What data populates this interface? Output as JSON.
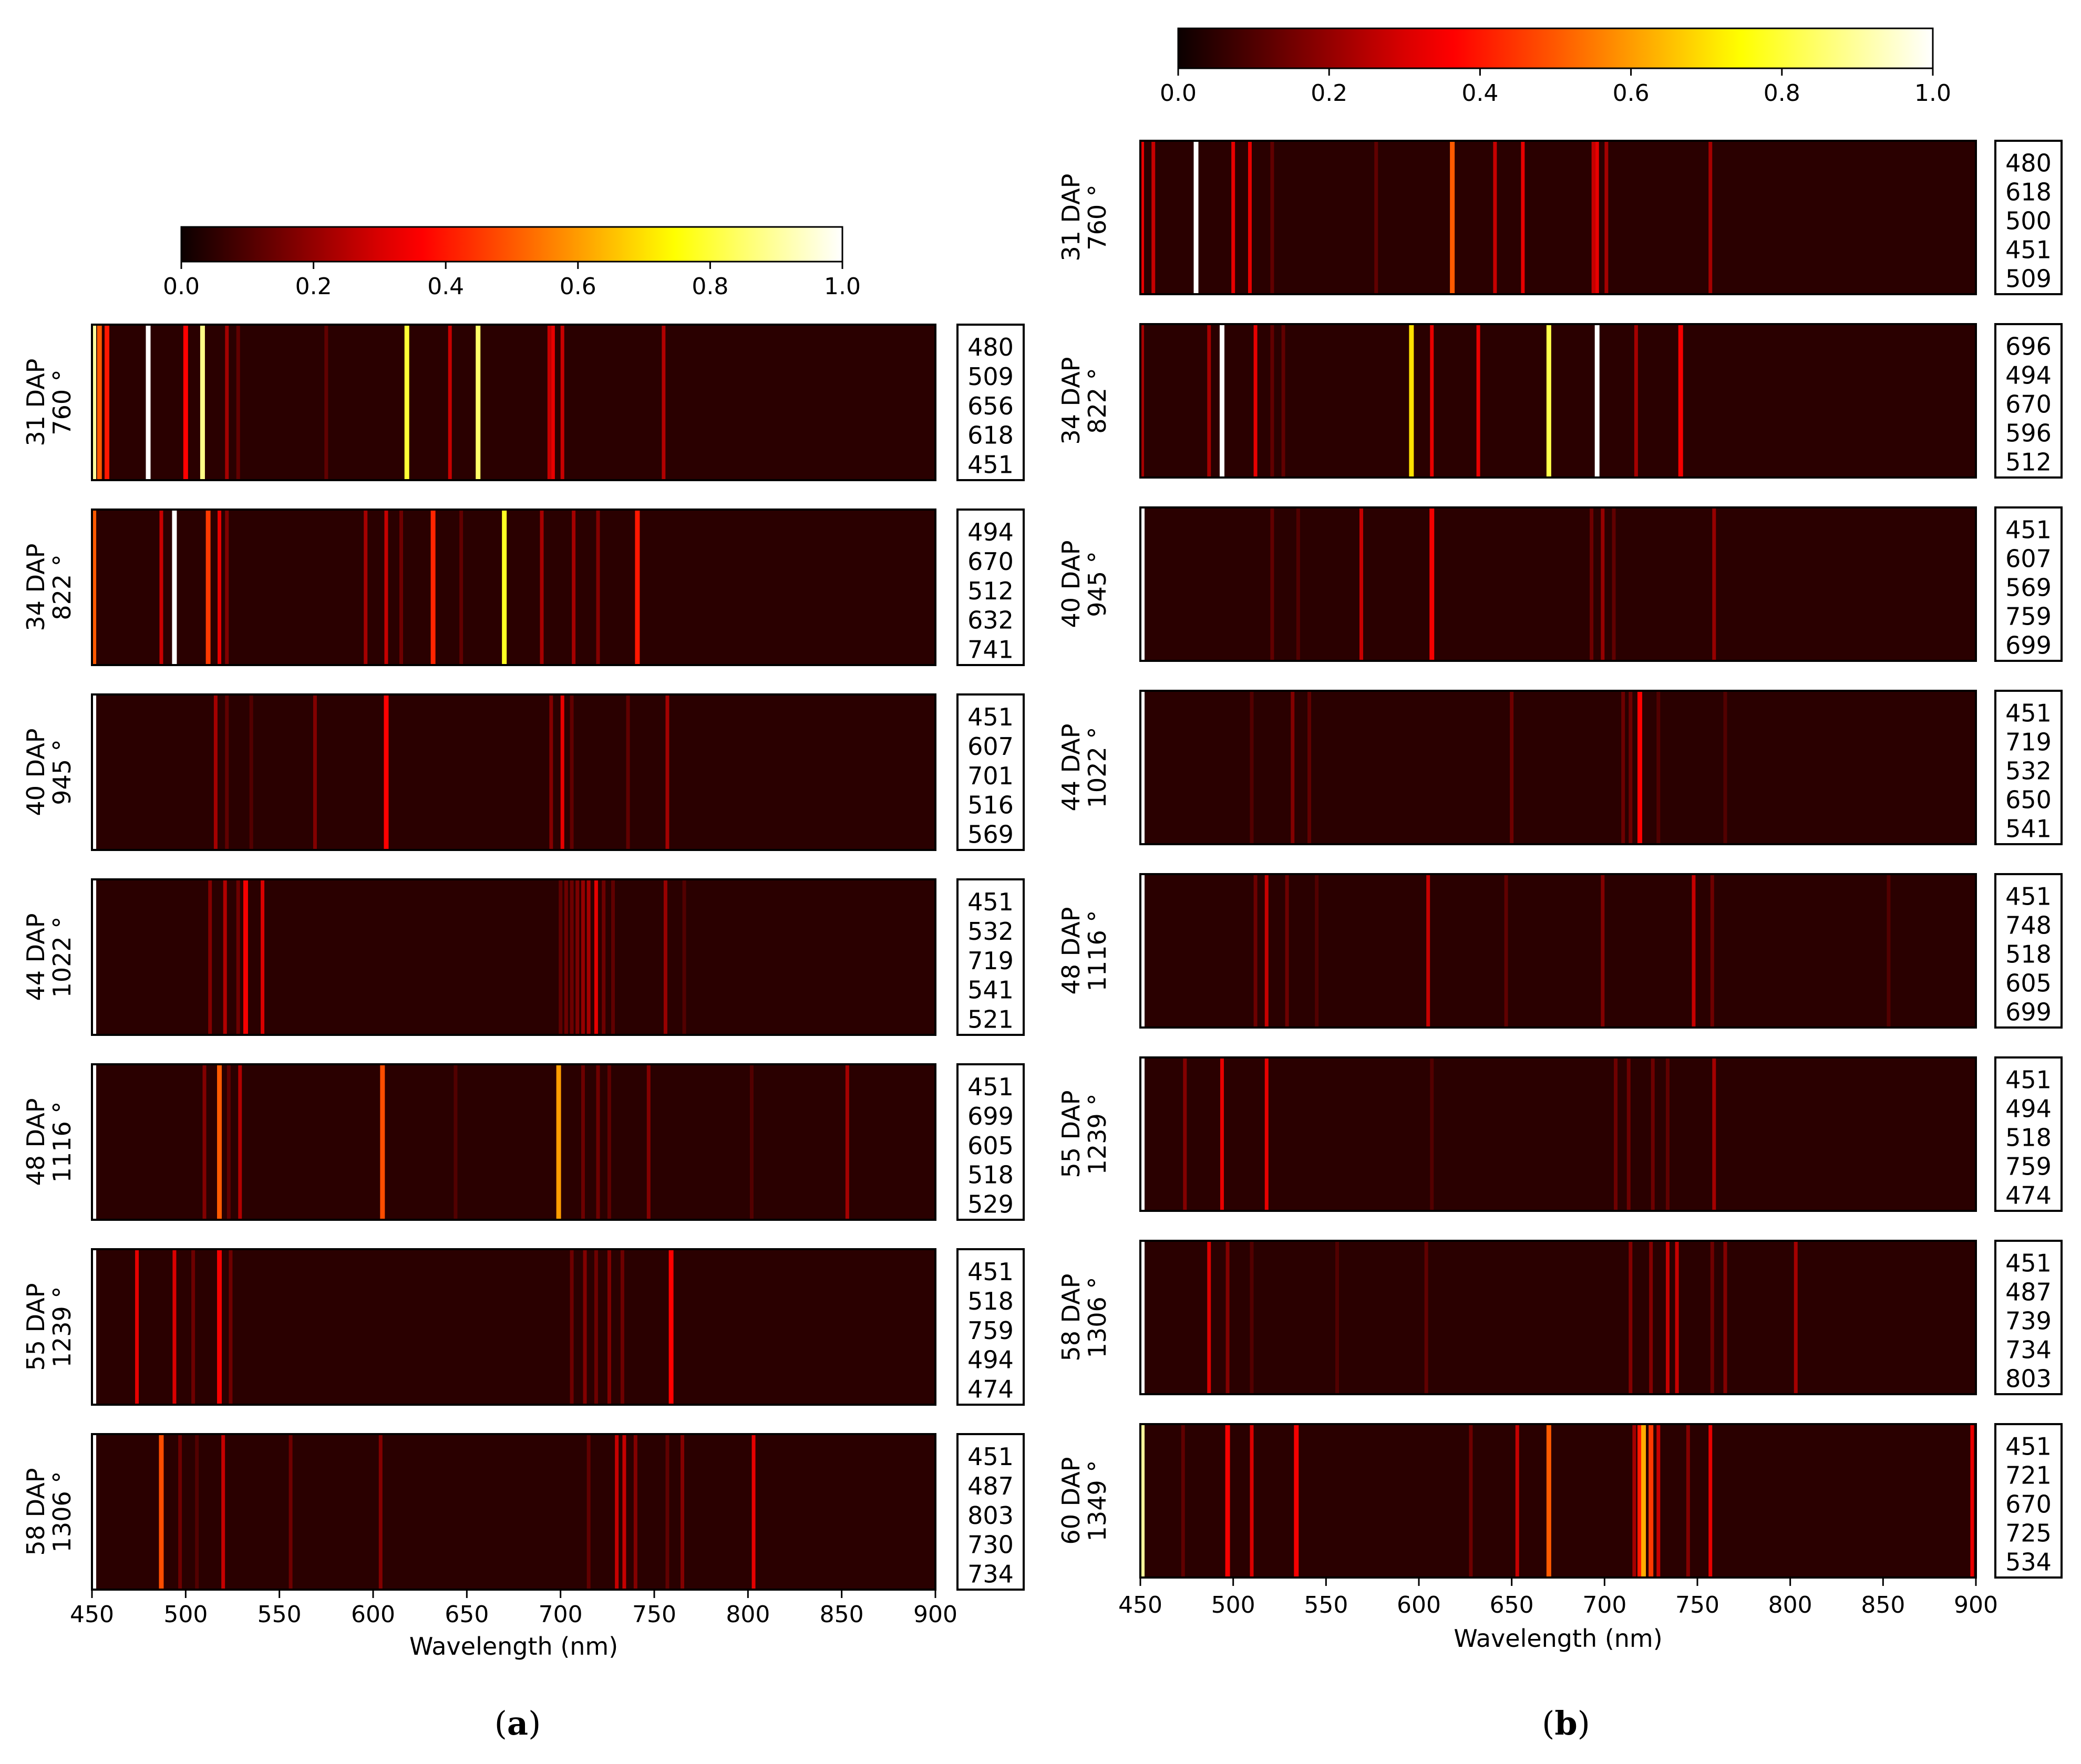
{
  "charts": [
    {
      "id": "a",
      "caption_letter": "a",
      "type": "heatmap",
      "xlabel": "Wavelength (nm)",
      "xlim": [
        450,
        900
      ],
      "xticks": [
        450,
        500,
        550,
        600,
        650,
        700,
        750,
        800,
        850,
        900
      ],
      "colorbar": {
        "colormap": "hot",
        "range": [
          0.0,
          1.0
        ],
        "ticks": [
          "0.0",
          "0.2",
          "0.4",
          "0.6",
          "0.8",
          "1.0"
        ]
      },
      "rows": [
        {
          "dap": "31 DAP",
          "deg": "760 °",
          "codes": [
            "480",
            "509",
            "656",
            "618",
            "451"
          ],
          "lines": [
            [
              451,
              0.9
            ],
            [
              454,
              0.5
            ],
            [
              458,
              0.4
            ],
            [
              480,
              1.0
            ],
            [
              500,
              0.34
            ],
            [
              509,
              0.88
            ],
            [
              522,
              0.2
            ],
            [
              528,
              0.1
            ],
            [
              575,
              0.1
            ],
            [
              618,
              0.8
            ],
            [
              641,
              0.25
            ],
            [
              656,
              0.85
            ],
            [
              694,
              0.25
            ],
            [
              696,
              0.3
            ],
            [
              701,
              0.25
            ],
            [
              755,
              0.22
            ]
          ]
        },
        {
          "dap": "34 DAP",
          "deg": "822 °",
          "codes": [
            "494",
            "670",
            "512",
            "632",
            "741"
          ],
          "lines": [
            [
              451,
              0.5
            ],
            [
              487,
              0.25
            ],
            [
              494,
              1.0
            ],
            [
              512,
              0.45
            ],
            [
              518,
              0.3
            ],
            [
              522,
              0.15
            ],
            [
              596,
              0.2
            ],
            [
              607,
              0.25
            ],
            [
              615,
              0.12
            ],
            [
              632,
              0.42
            ],
            [
              647,
              0.1
            ],
            [
              670,
              0.78
            ],
            [
              690,
              0.2
            ],
            [
              707,
              0.2
            ],
            [
              720,
              0.15
            ],
            [
              741,
              0.4
            ]
          ]
        },
        {
          "dap": "40 DAP",
          "deg": "945 °",
          "codes": [
            "451",
            "607",
            "701",
            "516",
            "569"
          ],
          "lines": [
            [
              451,
              1.0
            ],
            [
              516,
              0.2
            ],
            [
              522,
              0.1
            ],
            [
              535,
              0.08
            ],
            [
              569,
              0.15
            ],
            [
              607,
              0.35
            ],
            [
              695,
              0.15
            ],
            [
              701,
              0.3
            ],
            [
              706,
              0.1
            ],
            [
              736,
              0.1
            ],
            [
              757,
              0.2
            ]
          ]
        },
        {
          "dap": "44 DAP",
          "deg": "1022 °",
          "codes": [
            "451",
            "532",
            "719",
            "541",
            "521"
          ],
          "lines": [
            [
              451,
              1.0
            ],
            [
              513,
              0.15
            ],
            [
              521,
              0.22
            ],
            [
              528,
              0.12
            ],
            [
              532,
              0.32
            ],
            [
              541,
              0.28
            ],
            [
              700,
              0.1
            ],
            [
              703,
              0.12
            ],
            [
              706,
              0.12
            ],
            [
              709,
              0.14
            ],
            [
              712,
              0.18
            ],
            [
              715,
              0.2
            ],
            [
              719,
              0.3
            ],
            [
              723,
              0.12
            ],
            [
              728,
              0.1
            ],
            [
              756,
              0.18
            ],
            [
              766,
              0.08
            ]
          ]
        },
        {
          "dap": "48 DAP",
          "deg": "1116 °",
          "codes": [
            "451",
            "699",
            "605",
            "518",
            "529"
          ],
          "lines": [
            [
              451,
              1.0
            ],
            [
              510,
              0.15
            ],
            [
              518,
              0.5
            ],
            [
              523,
              0.1
            ],
            [
              529,
              0.22
            ],
            [
              605,
              0.48
            ],
            [
              644,
              0.08
            ],
            [
              699,
              0.6
            ],
            [
              712,
              0.12
            ],
            [
              720,
              0.12
            ],
            [
              726,
              0.1
            ],
            [
              747,
              0.15
            ],
            [
              802,
              0.08
            ],
            [
              853,
              0.2
            ]
          ]
        },
        {
          "dap": "55 DAP",
          "deg": "1239 °",
          "codes": [
            "451",
            "518",
            "759",
            "494",
            "474"
          ],
          "lines": [
            [
              451,
              1.0
            ],
            [
              474,
              0.3
            ],
            [
              494,
              0.28
            ],
            [
              504,
              0.12
            ],
            [
              518,
              0.32
            ],
            [
              524,
              0.12
            ],
            [
              706,
              0.12
            ],
            [
              713,
              0.15
            ],
            [
              719,
              0.12
            ],
            [
              726,
              0.15
            ],
            [
              733,
              0.12
            ],
            [
              759,
              0.35
            ]
          ]
        },
        {
          "dap": "58 DAP",
          "deg": "1306 °",
          "codes": [
            "451",
            "487",
            "803",
            "730",
            "734"
          ],
          "lines": [
            [
              451,
              1.0
            ],
            [
              487,
              0.48
            ],
            [
              497,
              0.12
            ],
            [
              506,
              0.08
            ],
            [
              520,
              0.25
            ],
            [
              556,
              0.12
            ],
            [
              604,
              0.15
            ],
            [
              715,
              0.1
            ],
            [
              730,
              0.25
            ],
            [
              734,
              0.25
            ],
            [
              740,
              0.15
            ],
            [
              757,
              0.1
            ],
            [
              765,
              0.15
            ],
            [
              803,
              0.3
            ]
          ]
        }
      ]
    },
    {
      "id": "b",
      "caption_letter": "b",
      "type": "heatmap",
      "xlabel": "Wavelength (nm)",
      "xlim": [
        450,
        900
      ],
      "xticks": [
        450,
        500,
        550,
        600,
        650,
        700,
        750,
        800,
        850,
        900
      ],
      "colorbar": {
        "colormap": "hot",
        "range": [
          0.0,
          1.0
        ],
        "ticks": [
          "0.0",
          "0.2",
          "0.4",
          "0.6",
          "0.8",
          "1.0"
        ]
      },
      "rows": [
        {
          "dap": "31 DAP",
          "deg": "760 °",
          "codes": [
            "480",
            "618",
            "500",
            "451",
            "509"
          ],
          "lines": [
            [
              451,
              0.3
            ],
            [
              457,
              0.25
            ],
            [
              480,
              1.0
            ],
            [
              500,
              0.3
            ],
            [
              509,
              0.3
            ],
            [
              521,
              0.1
            ],
            [
              577,
              0.1
            ],
            [
              618,
              0.5
            ],
            [
              641,
              0.25
            ],
            [
              656,
              0.3
            ],
            [
              694,
              0.25
            ],
            [
              696,
              0.3
            ],
            [
              701,
              0.2
            ],
            [
              757,
              0.2
            ]
          ]
        },
        {
          "dap": "34 DAP",
          "deg": "822 °",
          "codes": [
            "696",
            "494",
            "670",
            "596",
            "512"
          ],
          "lines": [
            [
              451,
              0.2
            ],
            [
              487,
              0.2
            ],
            [
              494,
              1.0
            ],
            [
              512,
              0.3
            ],
            [
              521,
              0.1
            ],
            [
              527,
              0.1
            ],
            [
              596,
              0.7
            ],
            [
              607,
              0.3
            ],
            [
              632,
              0.3
            ],
            [
              670,
              0.82
            ],
            [
              696,
              1.0
            ],
            [
              717,
              0.2
            ],
            [
              741,
              0.32
            ]
          ]
        },
        {
          "dap": "40 DAP",
          "deg": "945 °",
          "codes": [
            "451",
            "607",
            "569",
            "759",
            "699"
          ],
          "lines": [
            [
              451,
              1.0
            ],
            [
              521,
              0.1
            ],
            [
              535,
              0.08
            ],
            [
              569,
              0.25
            ],
            [
              607,
              0.32
            ],
            [
              693,
              0.12
            ],
            [
              699,
              0.18
            ],
            [
              705,
              0.1
            ],
            [
              759,
              0.18
            ]
          ]
        },
        {
          "dap": "44 DAP",
          "deg": "1022 °",
          "codes": [
            "451",
            "719",
            "532",
            "650",
            "541"
          ],
          "lines": [
            [
              451,
              1.0
            ],
            [
              510,
              0.08
            ],
            [
              532,
              0.15
            ],
            [
              541,
              0.1
            ],
            [
              650,
              0.12
            ],
            [
              710,
              0.12
            ],
            [
              714,
              0.12
            ],
            [
              719,
              0.35
            ],
            [
              729,
              0.08
            ],
            [
              765,
              0.08
            ]
          ]
        },
        {
          "dap": "48 DAP",
          "deg": "1116 °",
          "codes": [
            "451",
            "748",
            "518",
            "605",
            "699"
          ],
          "lines": [
            [
              451,
              1.0
            ],
            [
              512,
              0.12
            ],
            [
              518,
              0.25
            ],
            [
              529,
              0.12
            ],
            [
              545,
              0.08
            ],
            [
              605,
              0.25
            ],
            [
              647,
              0.1
            ],
            [
              699,
              0.15
            ],
            [
              748,
              0.25
            ],
            [
              758,
              0.12
            ],
            [
              853,
              0.08
            ]
          ]
        },
        {
          "dap": "55 DAP",
          "deg": "1239 °",
          "codes": [
            "451",
            "494",
            "518",
            "759",
            "474"
          ],
          "lines": [
            [
              451,
              1.0
            ],
            [
              474,
              0.15
            ],
            [
              494,
              0.3
            ],
            [
              518,
              0.3
            ],
            [
              607,
              0.08
            ],
            [
              706,
              0.12
            ],
            [
              713,
              0.12
            ],
            [
              726,
              0.12
            ],
            [
              734,
              0.1
            ],
            [
              759,
              0.2
            ]
          ]
        },
        {
          "dap": "58 DAP",
          "deg": "1306 °",
          "codes": [
            "451",
            "487",
            "739",
            "734",
            "803"
          ],
          "lines": [
            [
              451,
              1.0
            ],
            [
              487,
              0.28
            ],
            [
              497,
              0.15
            ],
            [
              510,
              0.08
            ],
            [
              556,
              0.08
            ],
            [
              604,
              0.1
            ],
            [
              714,
              0.15
            ],
            [
              725,
              0.15
            ],
            [
              734,
              0.25
            ],
            [
              739,
              0.25
            ],
            [
              758,
              0.12
            ],
            [
              765,
              0.15
            ],
            [
              803,
              0.2
            ]
          ]
        },
        {
          "dap": "60 DAP",
          "deg": "1349 °",
          "codes": [
            "451",
            "721",
            "670",
            "725",
            "534"
          ],
          "lines": [
            [
              451,
              0.9
            ],
            [
              473,
              0.1
            ],
            [
              497,
              0.32
            ],
            [
              510,
              0.28
            ],
            [
              534,
              0.32
            ],
            [
              628,
              0.12
            ],
            [
              653,
              0.25
            ],
            [
              670,
              0.5
            ],
            [
              716,
              0.2
            ],
            [
              719,
              0.4
            ],
            [
              721,
              0.62
            ],
            [
              725,
              0.45
            ],
            [
              729,
              0.25
            ],
            [
              745,
              0.15
            ],
            [
              757,
              0.3
            ],
            [
              898,
              0.3
            ]
          ]
        }
      ]
    }
  ]
}
